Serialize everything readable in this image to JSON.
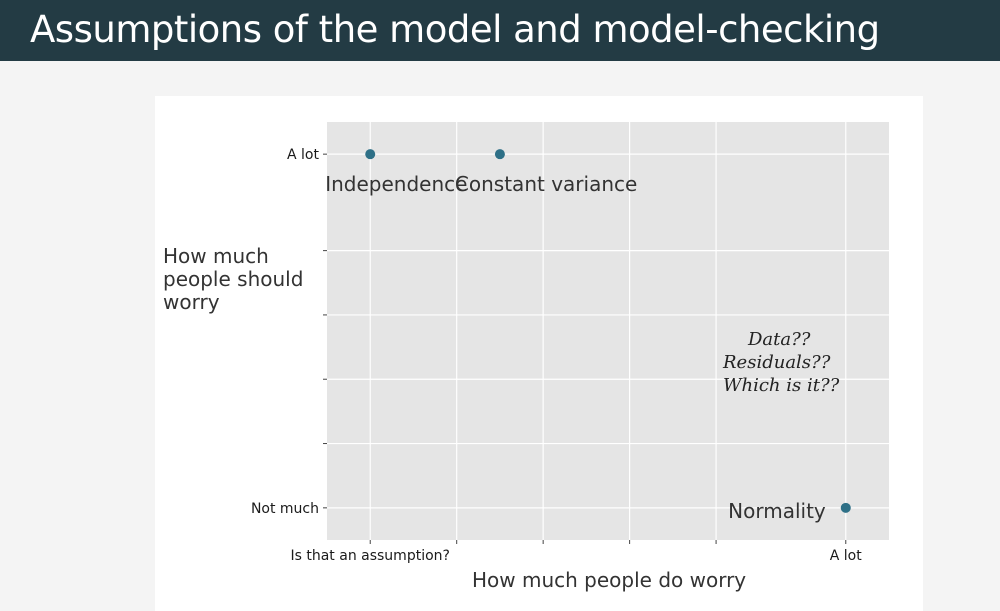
{
  "slide": {
    "title": "Assumptions of the model and model-checking"
  },
  "annotation": {
    "lines": [
      "Data??",
      "Residuals??",
      "Which is it??"
    ]
  },
  "chart_data": {
    "type": "scatter",
    "title": "",
    "xlabel": "How much people do worry",
    "ylabel_lines": [
      "How much",
      "people should",
      "worry"
    ],
    "xlim": [
      0.5,
      7.0
    ],
    "ylim": [
      0.5,
      7.0
    ],
    "x_ticks": [
      {
        "value": 1,
        "label": "Is that an assumption?"
      },
      {
        "value": 2,
        "label": ""
      },
      {
        "value": 3,
        "label": ""
      },
      {
        "value": 4,
        "label": ""
      },
      {
        "value": 5,
        "label": ""
      },
      {
        "value": 6.5,
        "label": "A lot"
      }
    ],
    "y_ticks": [
      {
        "value": 1,
        "label": "Not much"
      },
      {
        "value": 2,
        "label": ""
      },
      {
        "value": 3,
        "label": ""
      },
      {
        "value": 4,
        "label": ""
      },
      {
        "value": 5,
        "label": ""
      },
      {
        "value": 6.5,
        "label": "A lot"
      }
    ],
    "points": [
      {
        "label": "Independence",
        "x": 1,
        "y": 6.5
      },
      {
        "label": "Constant variance",
        "x": 2.5,
        "y": 6.5
      },
      {
        "label": "Normality",
        "x": 6.5,
        "y": 1
      }
    ],
    "point_color": "#2e7087",
    "panel_color": "#e5e5e5",
    "grid": true
  }
}
